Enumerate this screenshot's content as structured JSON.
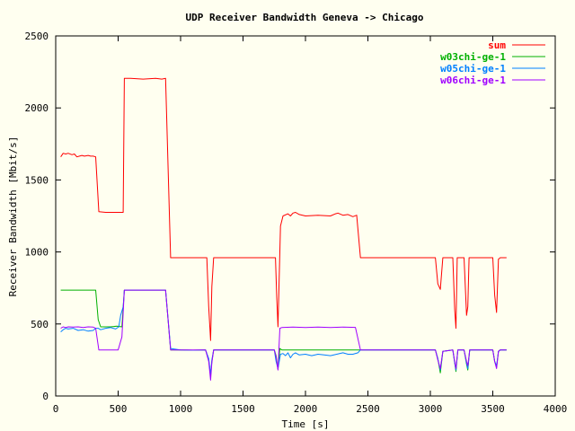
{
  "chart_data": {
    "type": "line",
    "title": "UDP Receiver Bandwidth Geneva -> Chicago",
    "xlabel": "Time [s]",
    "ylabel": "Receiver Bandwidth [Mbit/s]",
    "xlim": [
      0,
      4000
    ],
    "ylim": [
      0,
      2500
    ],
    "x_ticks": [
      0,
      500,
      1000,
      1500,
      2000,
      2500,
      3000,
      3500,
      4000
    ],
    "y_ticks": [
      0,
      500,
      1000,
      1500,
      2000,
      2500
    ],
    "grid": false,
    "legend_position": "top-right",
    "series": [
      {
        "name": "sum",
        "color": "#ff0000",
        "points": [
          [
            40,
            1660
          ],
          [
            60,
            1685
          ],
          [
            80,
            1680
          ],
          [
            100,
            1685
          ],
          [
            130,
            1675
          ],
          [
            150,
            1680
          ],
          [
            170,
            1660
          ],
          [
            190,
            1665
          ],
          [
            210,
            1670
          ],
          [
            230,
            1665
          ],
          [
            260,
            1670
          ],
          [
            280,
            1665
          ],
          [
            300,
            1665
          ],
          [
            320,
            1660
          ],
          [
            345,
            1280
          ],
          [
            400,
            1275
          ],
          [
            460,
            1275
          ],
          [
            505,
            1275
          ],
          [
            540,
            1275
          ],
          [
            550,
            2205
          ],
          [
            600,
            2205
          ],
          [
            700,
            2200
          ],
          [
            800,
            2205
          ],
          [
            850,
            2200
          ],
          [
            880,
            2205
          ],
          [
            920,
            960
          ],
          [
            1000,
            960
          ],
          [
            1100,
            960
          ],
          [
            1200,
            960
          ],
          [
            1210,
            960
          ],
          [
            1225,
            620
          ],
          [
            1240,
            385
          ],
          [
            1250,
            760
          ],
          [
            1265,
            960
          ],
          [
            1400,
            960
          ],
          [
            1500,
            960
          ],
          [
            1600,
            960
          ],
          [
            1700,
            960
          ],
          [
            1760,
            960
          ],
          [
            1770,
            690
          ],
          [
            1780,
            480
          ],
          [
            1800,
            1180
          ],
          [
            1820,
            1250
          ],
          [
            1860,
            1265
          ],
          [
            1880,
            1250
          ],
          [
            1900,
            1270
          ],
          [
            1920,
            1275
          ],
          [
            1950,
            1260
          ],
          [
            2000,
            1250
          ],
          [
            2100,
            1255
          ],
          [
            2200,
            1250
          ],
          [
            2240,
            1265
          ],
          [
            2260,
            1270
          ],
          [
            2300,
            1255
          ],
          [
            2340,
            1260
          ],
          [
            2380,
            1245
          ],
          [
            2410,
            1255
          ],
          [
            2440,
            960
          ],
          [
            2600,
            960
          ],
          [
            2800,
            960
          ],
          [
            3000,
            960
          ],
          [
            3040,
            960
          ],
          [
            3060,
            780
          ],
          [
            3080,
            740
          ],
          [
            3100,
            960
          ],
          [
            3180,
            960
          ],
          [
            3195,
            600
          ],
          [
            3205,
            470
          ],
          [
            3215,
            960
          ],
          [
            3270,
            960
          ],
          [
            3290,
            560
          ],
          [
            3300,
            620
          ],
          [
            3310,
            960
          ],
          [
            3500,
            960
          ],
          [
            3515,
            700
          ],
          [
            3530,
            580
          ],
          [
            3545,
            950
          ],
          [
            3560,
            960
          ],
          [
            3610,
            960
          ]
        ]
      },
      {
        "name": "w03chi-ge-1",
        "color": "#00b000",
        "points": [
          [
            40,
            735
          ],
          [
            100,
            735
          ],
          [
            200,
            735
          ],
          [
            300,
            735
          ],
          [
            320,
            735
          ],
          [
            340,
            530
          ],
          [
            360,
            480
          ],
          [
            380,
            480
          ],
          [
            440,
            480
          ],
          [
            490,
            485
          ],
          [
            530,
            480
          ],
          [
            550,
            735
          ],
          [
            600,
            735
          ],
          [
            700,
            735
          ],
          [
            800,
            735
          ],
          [
            880,
            735
          ],
          [
            920,
            320
          ],
          [
            1000,
            320
          ],
          [
            1100,
            318
          ],
          [
            1200,
            320
          ],
          [
            1225,
            250
          ],
          [
            1240,
            140
          ],
          [
            1250,
            240
          ],
          [
            1265,
            320
          ],
          [
            1400,
            320
          ],
          [
            1500,
            320
          ],
          [
            1600,
            320
          ],
          [
            1750,
            320
          ],
          [
            1765,
            280
          ],
          [
            1780,
            185
          ],
          [
            1795,
            330
          ],
          [
            1810,
            320
          ],
          [
            2000,
            320
          ],
          [
            2200,
            320
          ],
          [
            2440,
            320
          ],
          [
            2600,
            320
          ],
          [
            2800,
            320
          ],
          [
            3000,
            320
          ],
          [
            3040,
            320
          ],
          [
            3060,
            260
          ],
          [
            3080,
            160
          ],
          [
            3100,
            310
          ],
          [
            3180,
            320
          ],
          [
            3195,
            230
          ],
          [
            3205,
            170
          ],
          [
            3220,
            320
          ],
          [
            3270,
            320
          ],
          [
            3290,
            220
          ],
          [
            3300,
            180
          ],
          [
            3315,
            320
          ],
          [
            3500,
            320
          ],
          [
            3515,
            240
          ],
          [
            3530,
            200
          ],
          [
            3545,
            310
          ],
          [
            3560,
            320
          ],
          [
            3610,
            320
          ]
        ]
      },
      {
        "name": "w05chi-ge-1",
        "color": "#0080ff",
        "points": [
          [
            40,
            445
          ],
          [
            60,
            460
          ],
          [
            80,
            470
          ],
          [
            100,
            465
          ],
          [
            140,
            470
          ],
          [
            180,
            455
          ],
          [
            220,
            460
          ],
          [
            260,
            450
          ],
          [
            300,
            455
          ],
          [
            320,
            470
          ],
          [
            340,
            470
          ],
          [
            360,
            460
          ],
          [
            400,
            470
          ],
          [
            440,
            475
          ],
          [
            480,
            465
          ],
          [
            505,
            480
          ],
          [
            520,
            560
          ],
          [
            540,
            620
          ],
          [
            550,
            735
          ],
          [
            600,
            735
          ],
          [
            700,
            735
          ],
          [
            800,
            735
          ],
          [
            880,
            735
          ],
          [
            920,
            330
          ],
          [
            1000,
            320
          ],
          [
            1100,
            318
          ],
          [
            1200,
            320
          ],
          [
            1225,
            260
          ],
          [
            1240,
            150
          ],
          [
            1250,
            250
          ],
          [
            1265,
            320
          ],
          [
            1400,
            320
          ],
          [
            1500,
            320
          ],
          [
            1600,
            320
          ],
          [
            1750,
            320
          ],
          [
            1765,
            240
          ],
          [
            1780,
            190
          ],
          [
            1800,
            290
          ],
          [
            1820,
            295
          ],
          [
            1840,
            280
          ],
          [
            1860,
            300
          ],
          [
            1880,
            265
          ],
          [
            1900,
            290
          ],
          [
            1920,
            300
          ],
          [
            1950,
            285
          ],
          [
            2000,
            290
          ],
          [
            2050,
            280
          ],
          [
            2100,
            290
          ],
          [
            2150,
            285
          ],
          [
            2200,
            280
          ],
          [
            2250,
            290
          ],
          [
            2300,
            300
          ],
          [
            2340,
            290
          ],
          [
            2380,
            290
          ],
          [
            2420,
            300
          ],
          [
            2440,
            320
          ],
          [
            2600,
            320
          ],
          [
            2800,
            320
          ],
          [
            3000,
            320
          ],
          [
            3040,
            320
          ],
          [
            3060,
            260
          ],
          [
            3080,
            180
          ],
          [
            3100,
            310
          ],
          [
            3180,
            320
          ],
          [
            3195,
            230
          ],
          [
            3205,
            180
          ],
          [
            3220,
            320
          ],
          [
            3270,
            320
          ],
          [
            3290,
            230
          ],
          [
            3300,
            190
          ],
          [
            3315,
            320
          ],
          [
            3500,
            320
          ],
          [
            3515,
            240
          ],
          [
            3530,
            210
          ],
          [
            3545,
            310
          ],
          [
            3560,
            320
          ],
          [
            3610,
            320
          ]
        ]
      },
      {
        "name": "w06chi-ge-1",
        "color": "#a000ff",
        "points": [
          [
            40,
            470
          ],
          [
            60,
            480
          ],
          [
            80,
            475
          ],
          [
            100,
            480
          ],
          [
            140,
            478
          ],
          [
            180,
            480
          ],
          [
            220,
            475
          ],
          [
            260,
            480
          ],
          [
            300,
            478
          ],
          [
            320,
            470
          ],
          [
            345,
            320
          ],
          [
            400,
            320
          ],
          [
            460,
            320
          ],
          [
            500,
            320
          ],
          [
            530,
            410
          ],
          [
            550,
            735
          ],
          [
            600,
            735
          ],
          [
            700,
            735
          ],
          [
            800,
            735
          ],
          [
            880,
            735
          ],
          [
            920,
            320
          ],
          [
            1000,
            320
          ],
          [
            1100,
            320
          ],
          [
            1200,
            320
          ],
          [
            1225,
            240
          ],
          [
            1240,
            110
          ],
          [
            1250,
            230
          ],
          [
            1265,
            320
          ],
          [
            1400,
            320
          ],
          [
            1500,
            320
          ],
          [
            1600,
            320
          ],
          [
            1750,
            320
          ],
          [
            1765,
            270
          ],
          [
            1780,
            180
          ],
          [
            1795,
            470
          ],
          [
            1810,
            475
          ],
          [
            1900,
            478
          ],
          [
            2000,
            475
          ],
          [
            2100,
            478
          ],
          [
            2200,
            475
          ],
          [
            2300,
            478
          ],
          [
            2400,
            476
          ],
          [
            2440,
            320
          ],
          [
            2600,
            320
          ],
          [
            2800,
            320
          ],
          [
            3000,
            320
          ],
          [
            3040,
            320
          ],
          [
            3060,
            250
          ],
          [
            3080,
            190
          ],
          [
            3100,
            310
          ],
          [
            3180,
            320
          ],
          [
            3195,
            240
          ],
          [
            3205,
            190
          ],
          [
            3220,
            320
          ],
          [
            3270,
            320
          ],
          [
            3290,
            240
          ],
          [
            3300,
            210
          ],
          [
            3315,
            320
          ],
          [
            3500,
            320
          ],
          [
            3515,
            240
          ],
          [
            3530,
            190
          ],
          [
            3545,
            310
          ],
          [
            3560,
            320
          ],
          [
            3610,
            320
          ]
        ]
      }
    ]
  }
}
